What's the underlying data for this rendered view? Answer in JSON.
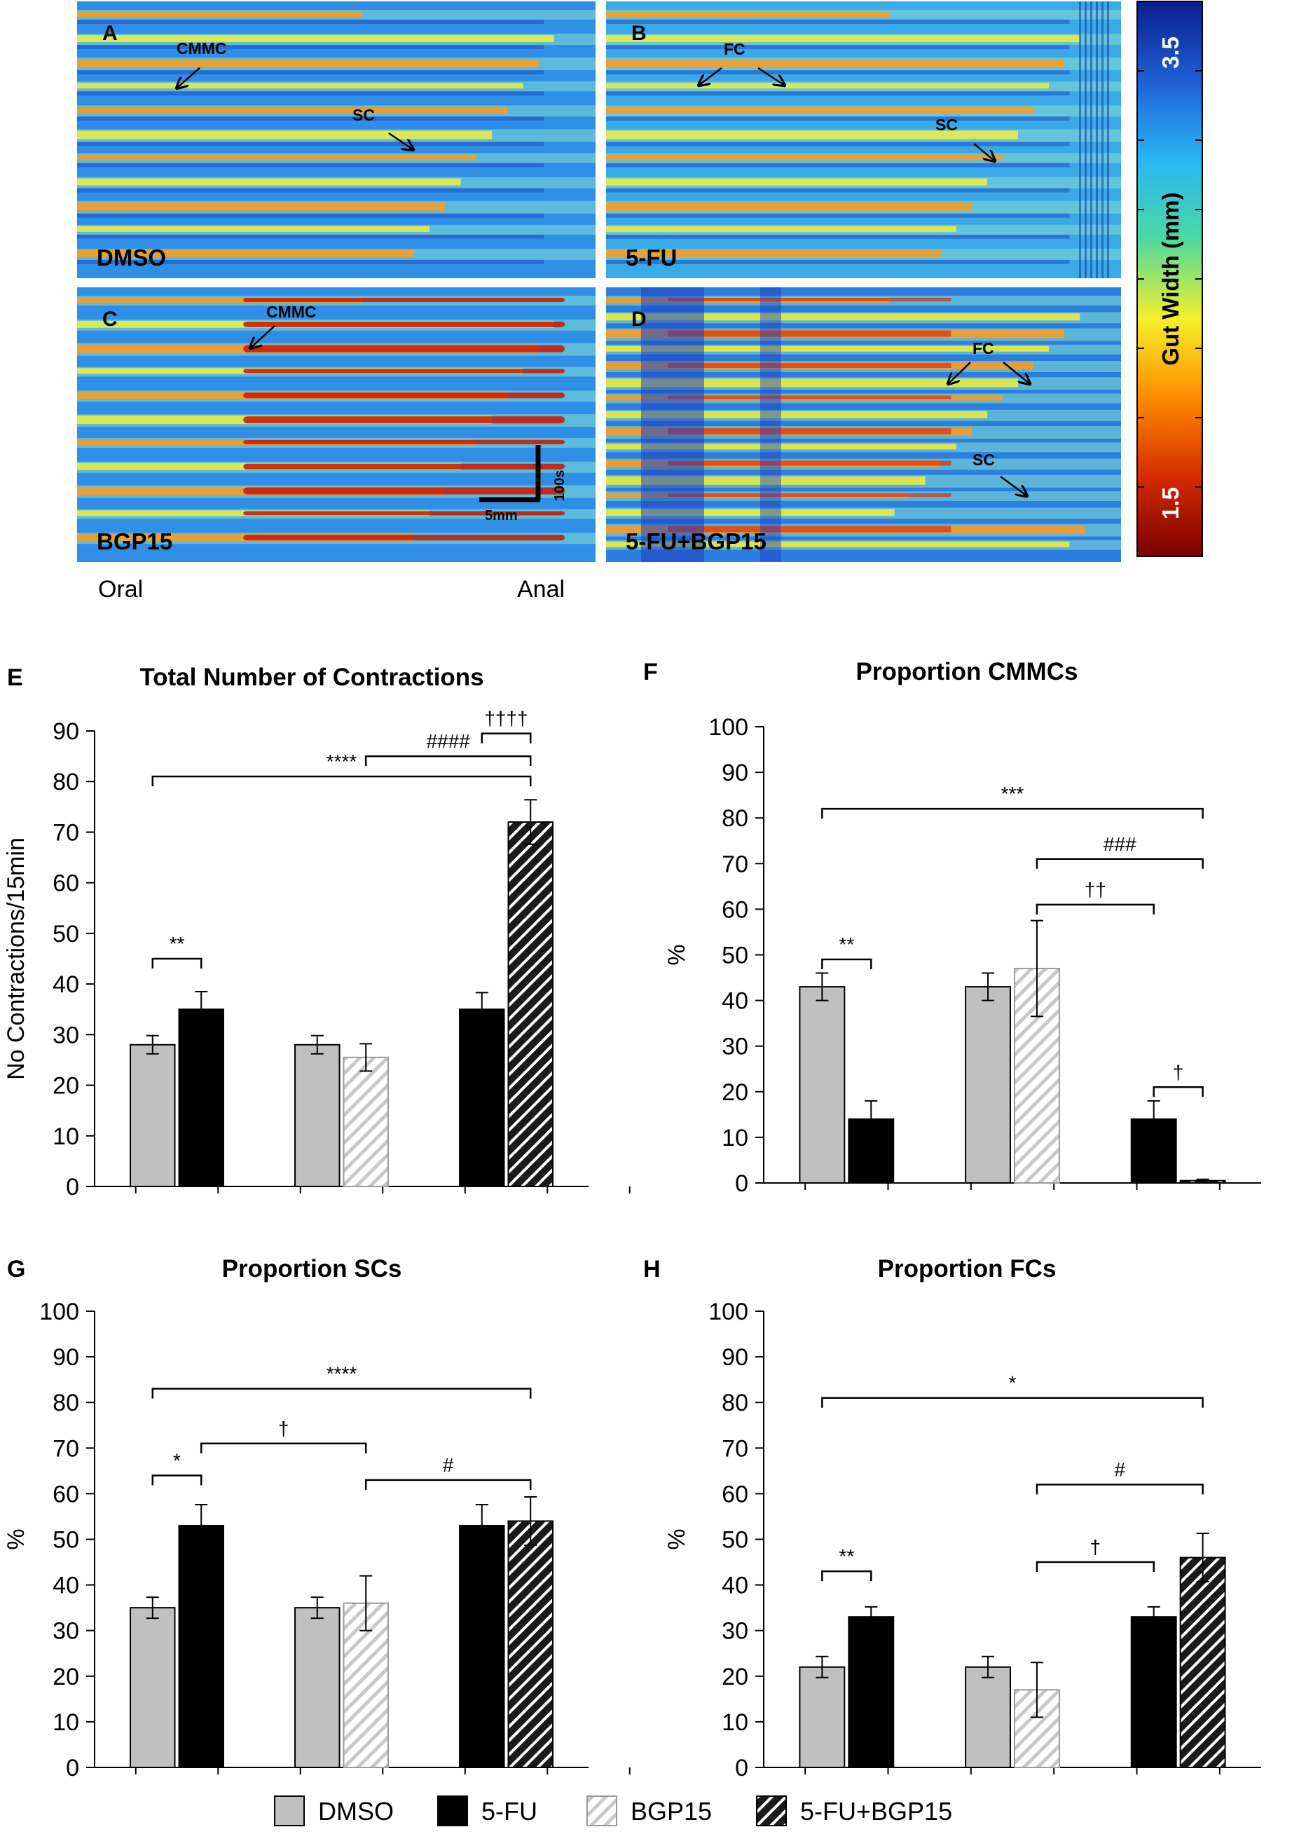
{
  "heatmaps": {
    "panels": [
      {
        "letter": "A",
        "condition": "DMSO",
        "labels": [
          {
            "text": "CMMC",
            "kind": "arrow-left"
          },
          {
            "text": "SC",
            "kind": "arrow-right"
          }
        ]
      },
      {
        "letter": "B",
        "condition": "5-FU",
        "labels": [
          {
            "text": "FC",
            "kind": "arrow-both"
          },
          {
            "text": "SC",
            "kind": "arrow-right"
          }
        ]
      },
      {
        "letter": "C",
        "condition": "BGP15",
        "labels": [
          {
            "text": "CMMC",
            "kind": "arrow-left"
          }
        ]
      },
      {
        "letter": "D",
        "condition": "5-FU+BGP15",
        "labels": [
          {
            "text": "FC",
            "kind": "arrow-both"
          },
          {
            "text": "SC",
            "kind": "arrow-right"
          }
        ]
      }
    ],
    "axis_oral": "Oral",
    "axis_anal": "Anal",
    "scale_time": "100s",
    "scale_length": "5mm",
    "colorbar": {
      "title": "Gut Width (mm)",
      "max_label": "3.5",
      "min_label": "1.5",
      "colors": [
        "#7a0000",
        "#d42a00",
        "#ff8c00",
        "#f5f02a",
        "#4dd9a0",
        "#29b6f6",
        "#1f5fd6",
        "#0a1e8c"
      ]
    }
  },
  "legend": {
    "items": [
      {
        "label": "DMSO",
        "style": "gray"
      },
      {
        "label": "5-FU",
        "style": "black"
      },
      {
        "label": "BGP15",
        "style": "hatch-light"
      },
      {
        "label": "5-FU+BGP15",
        "style": "hatch-dark"
      }
    ]
  },
  "colors": {
    "gray": "#c0c0c0",
    "black": "#000000",
    "hatch_light_line": "#c8c8c8",
    "hatch_dark_bg": "#1a1a1a",
    "hatch_dark_line": "#ffffff"
  },
  "chart_data": [
    {
      "panel": "E",
      "type": "bar",
      "title": "Total Number of Contractions",
      "ylabel": "No Contractions/15min",
      "ylim": [
        0,
        90
      ],
      "yticks": [
        "0",
        "10",
        "20",
        "30",
        "40",
        "50",
        "60",
        "70",
        "80",
        "90"
      ],
      "values": [
        28,
        35,
        28,
        25.5,
        35,
        72
      ],
      "errors": [
        1.8,
        3.5,
        1.8,
        2.7,
        3.3,
        4.4
      ],
      "significance": [
        {
          "text": "**",
          "from": 0,
          "to": 1,
          "y": 45
        },
        {
          "text": "****",
          "from": 0,
          "to": 5,
          "y": 81
        },
        {
          "text": "####",
          "from": 3,
          "to": 5,
          "y": 85
        },
        {
          "text": "††††",
          "from": 4,
          "to": 5,
          "y": 89.5
        }
      ]
    },
    {
      "panel": "F",
      "type": "bar",
      "title": "Proportion CMMCs",
      "ylabel": "%",
      "ylim": [
        0,
        100
      ],
      "yticks": [
        "0",
        "10",
        "20",
        "30",
        "40",
        "50",
        "60",
        "70",
        "80",
        "90",
        "100"
      ],
      "values": [
        43,
        14,
        43,
        47,
        14,
        0.5
      ],
      "errors": [
        3,
        4,
        3,
        10.5,
        4,
        0.3
      ],
      "significance": [
        {
          "text": "***",
          "from": 0,
          "to": 5,
          "y": 82
        },
        {
          "text": "###",
          "from": 3,
          "to": 5,
          "y": 71
        },
        {
          "text": "††",
          "from": 3,
          "to": 4,
          "y": 61
        },
        {
          "text": "**",
          "from": 0,
          "to": 1,
          "y": 49
        },
        {
          "text": "†",
          "from": 4,
          "to": 5,
          "y": 21
        }
      ]
    },
    {
      "panel": "G",
      "type": "bar",
      "title": "Proportion SCs",
      "ylabel": "%",
      "ylim": [
        0,
        100
      ],
      "yticks": [
        "0",
        "10",
        "20",
        "30",
        "40",
        "50",
        "60",
        "70",
        "80",
        "90",
        "100"
      ],
      "values": [
        35,
        53,
        35,
        36,
        53,
        54
      ],
      "errors": [
        2.3,
        4.6,
        2.3,
        6,
        4.6,
        5.3
      ],
      "significance": [
        {
          "text": "****",
          "from": 0,
          "to": 5,
          "y": 83
        },
        {
          "text": "†",
          "from": 1,
          "to": 3,
          "y": 71
        },
        {
          "text": "*",
          "from": 0,
          "to": 1,
          "y": 64
        },
        {
          "text": "#",
          "from": 3,
          "to": 5,
          "y": 63
        }
      ]
    },
    {
      "panel": "H",
      "type": "bar",
      "title": "Proportion FCs",
      "ylabel": "%",
      "ylim": [
        0,
        100
      ],
      "yticks": [
        "0",
        "10",
        "20",
        "30",
        "40",
        "50",
        "60",
        "70",
        "80",
        "90",
        "100"
      ],
      "values": [
        22,
        33,
        22,
        17,
        33,
        46
      ],
      "errors": [
        2.3,
        2.2,
        2.3,
        6,
        2.2,
        5.3
      ],
      "significance": [
        {
          "text": "*",
          "from": 0,
          "to": 5,
          "y": 81
        },
        {
          "text": "#",
          "from": 3,
          "to": 5,
          "y": 62
        },
        {
          "text": "†",
          "from": 3,
          "to": 4,
          "y": 45
        },
        {
          "text": "**",
          "from": 0,
          "to": 1,
          "y": 43
        }
      ]
    }
  ]
}
